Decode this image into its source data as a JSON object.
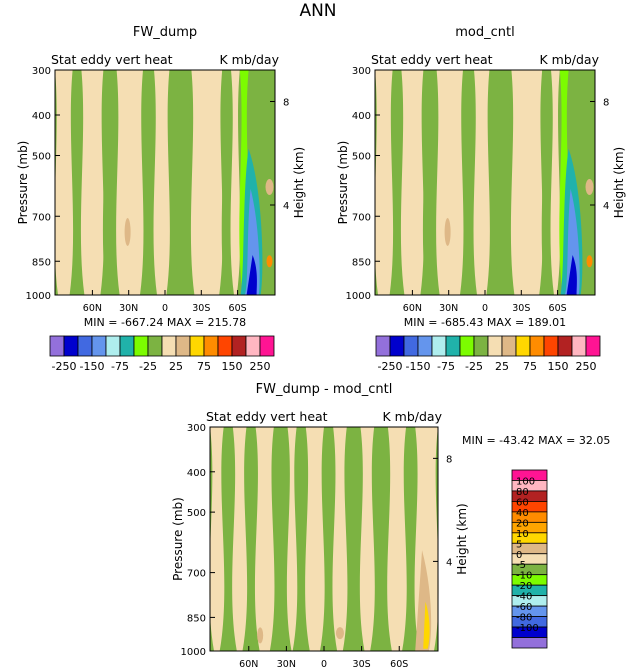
{
  "figure_title": "ANN",
  "chart_data": [
    {
      "type": "heatmap",
      "title": "FW_dump",
      "subtitle": "Stat eddy vert heat",
      "units": "K mb/day",
      "ylabel": "Pressure (mb)",
      "y2label": "Height (km)",
      "y_ticks": [
        "300",
        "400",
        "500",
        "700",
        "850",
        "1000"
      ],
      "y2_ticks": [
        "8",
        "4"
      ],
      "x_ticks": [
        "60N",
        "30N",
        "0",
        "30S",
        "60S"
      ],
      "stats": "MIN = -667.24   MAX = 215.78",
      "colorbar_labels": [
        "-250",
        "-150",
        "-75",
        "-25",
        "25",
        "75",
        "150",
        "250"
      ]
    },
    {
      "type": "heatmap",
      "title": "mod_cntl",
      "subtitle": "Stat eddy vert heat",
      "units": "K mb/day",
      "ylabel": "Pressure (mb)",
      "y2label": "Height (km)",
      "y_ticks": [
        "300",
        "400",
        "500",
        "700",
        "850",
        "1000"
      ],
      "y2_ticks": [
        "8",
        "4"
      ],
      "x_ticks": [
        "60N",
        "30N",
        "0",
        "30S",
        "60S"
      ],
      "stats": "MIN = -685.43   MAX = 189.01",
      "colorbar_labels": [
        "-250",
        "-150",
        "-75",
        "-25",
        "25",
        "75",
        "150",
        "250"
      ]
    },
    {
      "type": "heatmap",
      "title": "FW_dump - mod_cntl",
      "subtitle": "Stat eddy vert heat",
      "units": "K mb/day",
      "ylabel": "Pressure (mb)",
      "y2label": "Height (km)",
      "y_ticks": [
        "300",
        "400",
        "500",
        "700",
        "850",
        "1000"
      ],
      "y2_ticks": [
        "8",
        "4"
      ],
      "x_ticks": [
        "60N",
        "30N",
        "0",
        "30S",
        "60S"
      ],
      "stats": "MIN = -43.42   MAX = 32.05",
      "colorbar_labels": [
        "100",
        "80",
        "60",
        "40",
        "20",
        "10",
        "5",
        "0",
        "-5",
        "-10",
        "-20",
        "-40",
        "-60",
        "-80",
        "-100"
      ]
    }
  ],
  "palette": {
    "top": [
      "#9370db",
      "#0000cd",
      "#4169e1",
      "#6495ed",
      "#afeeee",
      "#20b2aa",
      "#7cfc00",
      "#7cb342",
      "#f5deb3",
      "#deb887",
      "#ffd700",
      "#ff8c00",
      "#ff4500",
      "#b22222",
      "#ffb6c1",
      "#ff1493"
    ],
    "bottom": [
      "#ff1493",
      "#ffb6c1",
      "#b22222",
      "#ff4500",
      "#ff8c00",
      "#ffa500",
      "#ffd700",
      "#deb887",
      "#f5deb3",
      "#7cb342",
      "#7cfc00",
      "#20b2aa",
      "#afeeee",
      "#6495ed",
      "#4169e1",
      "#0000cd",
      "#9370db"
    ]
  }
}
